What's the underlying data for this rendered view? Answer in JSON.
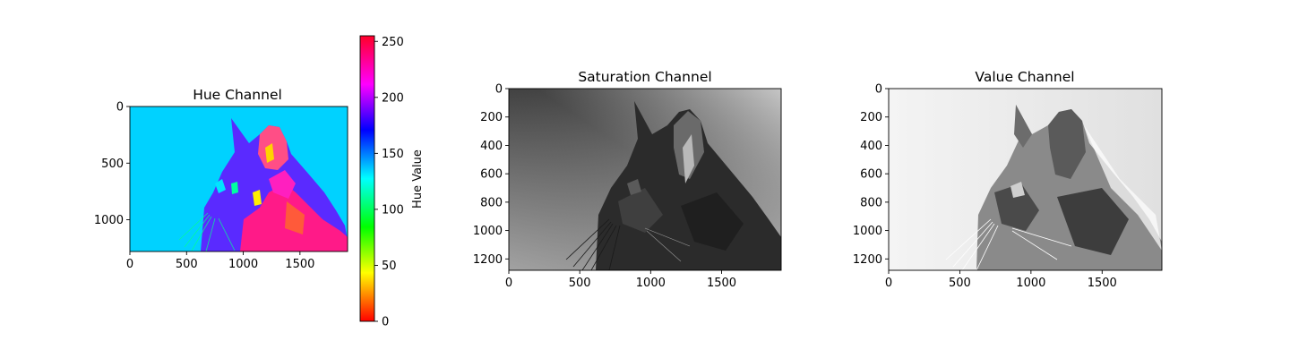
{
  "chart_data": [
    {
      "type": "heatmap",
      "title": "Hue Channel",
      "colormap": "hsv",
      "xlim": [
        0,
        1920
      ],
      "ylim": [
        1280,
        0
      ],
      "xticks": [
        0,
        500,
        1000,
        1500
      ],
      "yticks": [
        0,
        500,
        1000
      ],
      "background_value": 150,
      "colorbar": {
        "label": "Hue Value",
        "range": [
          0,
          255
        ],
        "ticks": [
          0,
          50,
          100,
          150,
          200,
          250
        ]
      }
    },
    {
      "type": "heatmap",
      "title": "Saturation Channel",
      "colormap": "gray",
      "xlim": [
        0,
        1920
      ],
      "ylim": [
        1280,
        0
      ],
      "xticks": [
        0,
        500,
        1000,
        1500
      ],
      "yticks": [
        0,
        200,
        400,
        600,
        800,
        1000,
        1200
      ]
    },
    {
      "type": "heatmap",
      "title": "Value Channel",
      "colormap": "gray",
      "xlim": [
        0,
        1920
      ],
      "ylim": [
        1280,
        0
      ],
      "xticks": [
        0,
        500,
        1000,
        1500
      ],
      "yticks": [
        0,
        200,
        400,
        600,
        800,
        1000,
        1200
      ]
    }
  ],
  "colors": {
    "hue_background": "#00d2ff",
    "hue_body": "#5a2aff",
    "hue_ear": "#ff2e8c",
    "hue_neck": "#ff1a88"
  }
}
